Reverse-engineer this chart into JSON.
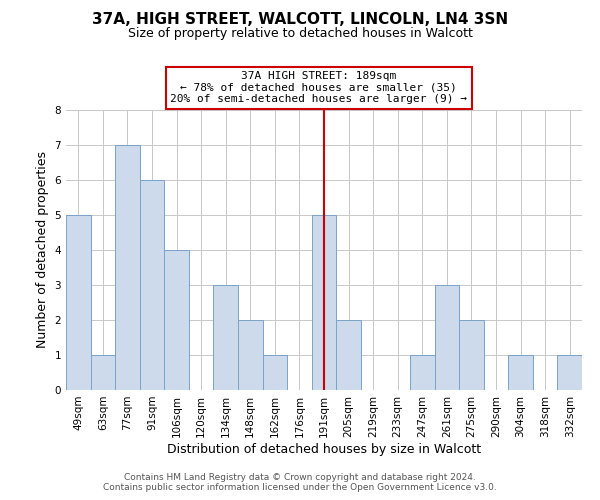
{
  "title": "37A, HIGH STREET, WALCOTT, LINCOLN, LN4 3SN",
  "subtitle": "Size of property relative to detached houses in Walcott",
  "xlabel": "Distribution of detached houses by size in Walcott",
  "ylabel": "Number of detached properties",
  "bar_labels": [
    "49sqm",
    "63sqm",
    "77sqm",
    "91sqm",
    "106sqm",
    "120sqm",
    "134sqm",
    "148sqm",
    "162sqm",
    "176sqm",
    "191sqm",
    "205sqm",
    "219sqm",
    "233sqm",
    "247sqm",
    "261sqm",
    "275sqm",
    "290sqm",
    "304sqm",
    "318sqm",
    "332sqm"
  ],
  "bar_values": [
    5,
    1,
    7,
    6,
    4,
    0,
    3,
    2,
    1,
    0,
    5,
    2,
    0,
    0,
    1,
    3,
    2,
    0,
    1,
    0,
    1
  ],
  "bar_color": "#cddaeb",
  "bar_edge_color": "#7ba3c8",
  "highlight_index": 10,
  "highlight_line_color": "#cc0000",
  "ylim": [
    0,
    8
  ],
  "yticks": [
    0,
    1,
    2,
    3,
    4,
    5,
    6,
    7,
    8
  ],
  "annotation_title": "37A HIGH STREET: 189sqm",
  "annotation_line1": "← 78% of detached houses are smaller (35)",
  "annotation_line2": "20% of semi-detached houses are larger (9) →",
  "annotation_box_color": "#ffffff",
  "annotation_box_edge": "#cc0000",
  "footer_line1": "Contains HM Land Registry data © Crown copyright and database right 2024.",
  "footer_line2": "Contains public sector information licensed under the Open Government Licence v3.0.",
  "background_color": "#ffffff",
  "grid_color": "#c8c8c8",
  "title_fontsize": 11,
  "subtitle_fontsize": 9,
  "tick_fontsize": 7.5,
  "axis_label_fontsize": 9,
  "annotation_fontsize": 8,
  "footer_fontsize": 6.5
}
